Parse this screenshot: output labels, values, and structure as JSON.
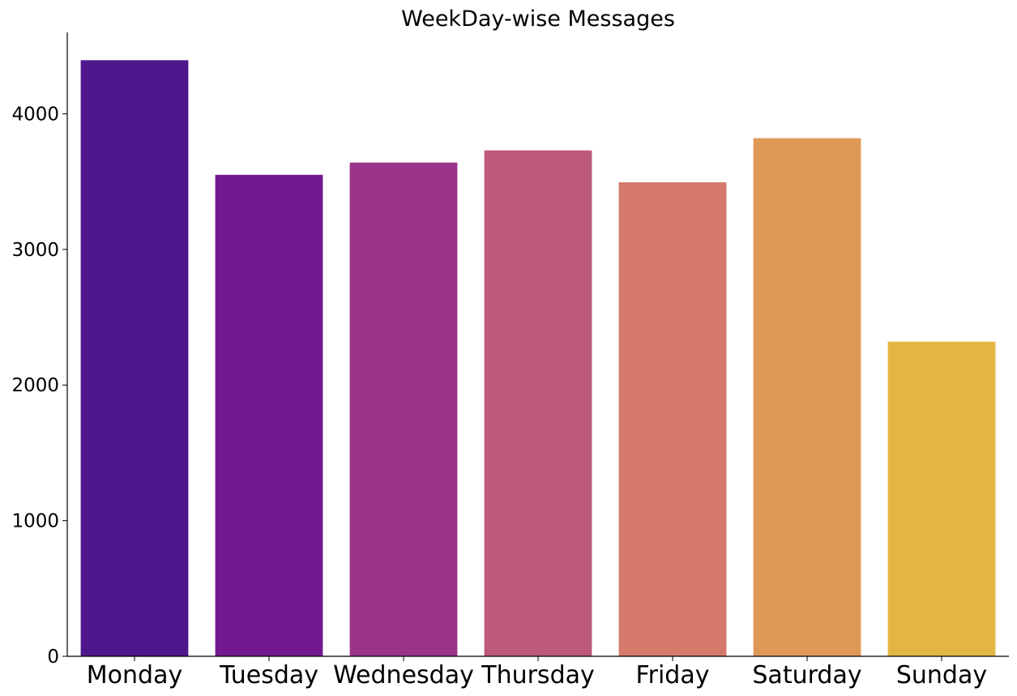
{
  "chart_data": {
    "type": "bar",
    "title": "WeekDay-wise Messages",
    "xlabel": "",
    "ylabel": "",
    "categories": [
      "Monday",
      "Tuesday",
      "Wednesday",
      "Thursday",
      "Friday",
      "Saturday",
      "Sunday"
    ],
    "values": [
      4395,
      3550,
      3640,
      3730,
      3495,
      3820,
      2320
    ],
    "colors": [
      "#4e178c",
      "#721991",
      "#993489",
      "#bd597a",
      "#d5796b",
      "#e09859",
      "#e3b644"
    ],
    "ylim": [
      0,
      4600
    ],
    "yticks": [
      0,
      1000,
      2000,
      3000,
      4000
    ],
    "ytick_labels": [
      "0",
      "1000",
      "2000",
      "3000",
      "4000"
    ],
    "grid": false,
    "legend": "none"
  }
}
